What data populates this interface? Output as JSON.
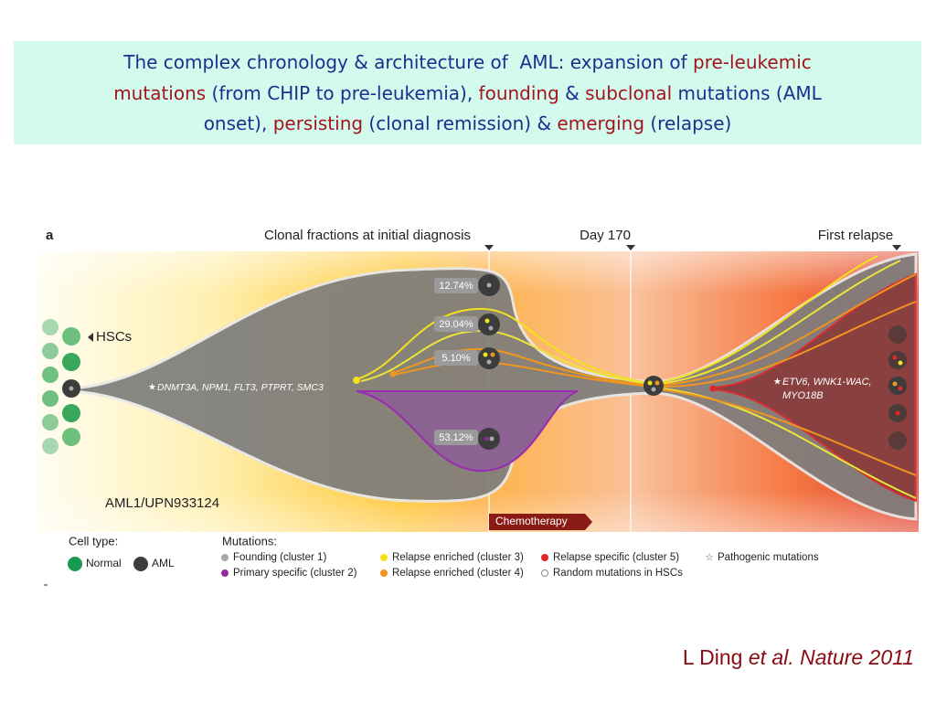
{
  "title": {
    "lines": [
      [
        {
          "text": "The complex chronology & architecture of  AML: expansion of ",
          "color": "#1f2d8f"
        },
        {
          "text": "pre-leukemic",
          "color": "#a3141e"
        }
      ],
      [
        {
          "text": "mutations",
          "color": "#a3141e"
        },
        {
          "text": " (from CHIP to pre-leukemia), ",
          "color": "#1f2d8f"
        },
        {
          "text": "founding",
          "color": "#a3141e"
        },
        {
          "text": " & ",
          "color": "#1f2d8f"
        },
        {
          "text": "subclonal",
          "color": "#a3141e"
        },
        {
          "text": " mutations (AML",
          "color": "#1f2d8f"
        }
      ],
      [
        {
          "text": "onset), ",
          "color": "#1f2d8f"
        },
        {
          "text": "persisting",
          "color": "#a3141e"
        },
        {
          "text": " (clonal remission) & ",
          "color": "#1f2d8f"
        },
        {
          "text": "emerging",
          "color": "#a3141e"
        },
        {
          "text": " (relapse)",
          "color": "#1f2d8f"
        }
      ]
    ]
  },
  "figure": {
    "panel_label": "a",
    "timepoints": [
      "Clonal fractions at initial diagnosis",
      "Day 170",
      "First relapse"
    ],
    "hsc_label": "HSCs",
    "founding_genes": "DNMT3A, NPM1, FLT3, PTPRT, SMC3",
    "relapse_genes": [
      "ETV6, WNK1-WAC,",
      "MYO18B"
    ],
    "clone_labels": [
      "12.74%",
      "29.04%",
      "5.10%",
      "53.12%"
    ],
    "patient": "AML1/UPN933124",
    "treatment": "Chemotherapy",
    "legend": {
      "cell_type": {
        "heading": "Cell type:",
        "items": [
          {
            "label": "Normal",
            "color": "#1a9a50",
            "shape": "circle"
          },
          {
            "label": "AML",
            "color": "#3c3c3c",
            "shape": "circle"
          }
        ]
      },
      "mutations": {
        "heading": "Mutations:",
        "items": [
          {
            "label": "Founding (cluster 1)",
            "color": "#a8a8a8",
            "shape": "circle"
          },
          {
            "label": "Primary specific (cluster 2)",
            "color": "#8e2c9c",
            "shape": "circle"
          },
          {
            "label": "Relapse enriched (cluster 3)",
            "color": "#f2e21c",
            "shape": "circle"
          },
          {
            "label": "Relapse enriched (cluster 4)",
            "color": "#f0961e",
            "shape": "circle"
          },
          {
            "label": "Relapse specific (cluster 5)",
            "color": "#e0262a",
            "shape": "circle"
          },
          {
            "label": "Random mutations in HSCs",
            "color": "#888888",
            "shape": "open-circle"
          },
          {
            "label": "Pathogenic mutations",
            "color": "#555555",
            "shape": "star"
          }
        ]
      }
    }
  },
  "citation": {
    "author": "L Ding ",
    "source": "et al. Nature 2011"
  }
}
